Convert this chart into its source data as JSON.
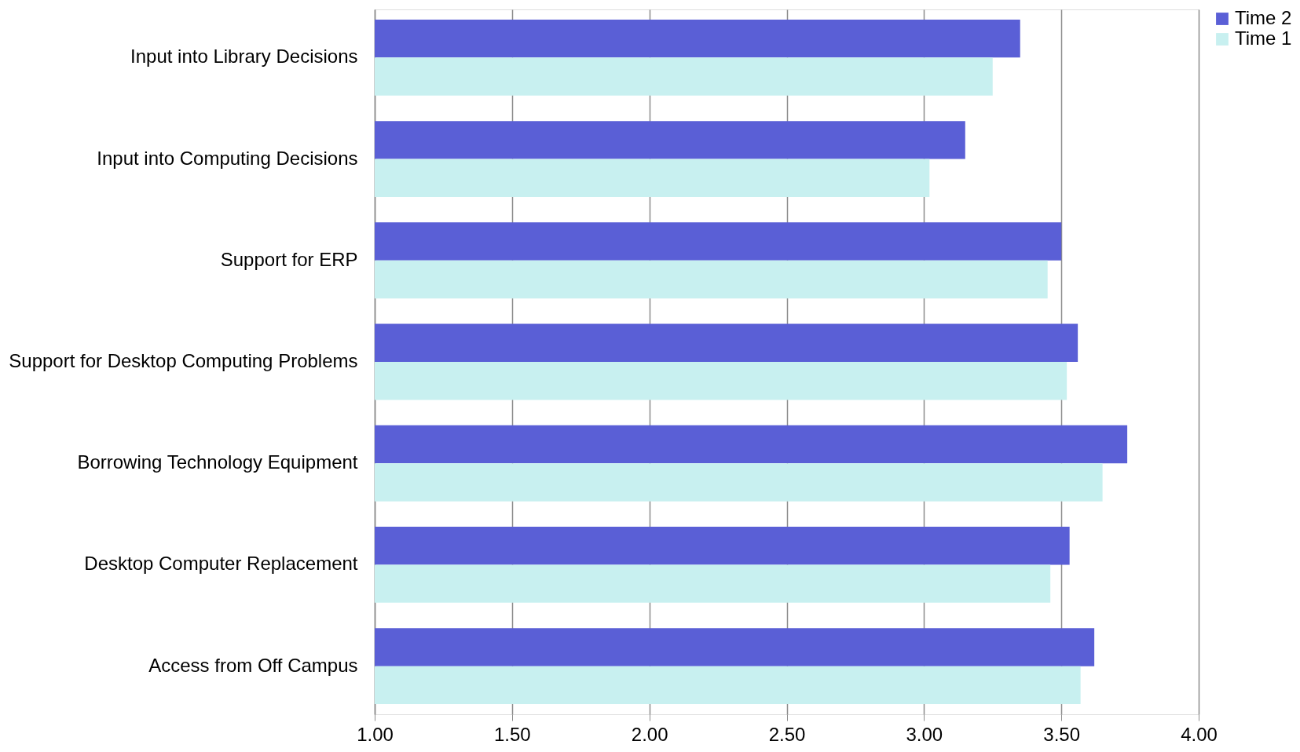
{
  "chart_data": {
    "type": "bar",
    "orientation": "horizontal",
    "categories": [
      "Input into Library Decisions",
      "Input into Computing Decisions",
      "Support for ERP",
      "Support for Desktop Computing Problems",
      "Borrowing Technology Equipment",
      "Desktop Computer Replacement",
      "Access from Off Campus"
    ],
    "series": [
      {
        "name": "Time 2",
        "color": "#5a5fd6",
        "values": [
          3.35,
          3.15,
          3.5,
          3.56,
          3.74,
          3.53,
          3.62
        ]
      },
      {
        "name": "Time 1",
        "color": "#c8f0f0",
        "values": [
          3.25,
          3.02,
          3.45,
          3.52,
          3.65,
          3.46,
          3.57
        ]
      }
    ],
    "xlim": [
      1.0,
      4.0
    ],
    "xticks": [
      {
        "value": 1.0,
        "label": "1.00"
      },
      {
        "value": 1.5,
        "label": "1.50"
      },
      {
        "value": 2.0,
        "label": "2.00"
      },
      {
        "value": 2.5,
        "label": "2.50"
      },
      {
        "value": 3.0,
        "label": "3.00"
      },
      {
        "value": 3.5,
        "label": "3.50"
      },
      {
        "value": 4.0,
        "label": "4.00"
      }
    ],
    "grid": "x",
    "legend": "right"
  }
}
